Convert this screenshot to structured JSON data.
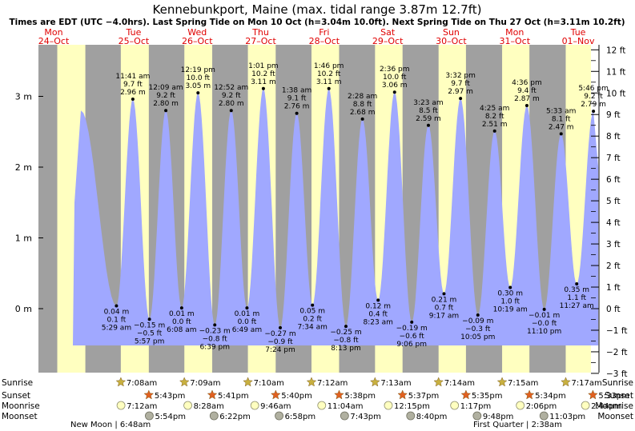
{
  "title": "Kennebunkport, Maine (max. tidal range 3.87m 12.7ft)",
  "subtitle": "Times are EDT (UTC −4.0hrs). Last Spring Tide on Mon 10 Oct (h=3.04m 10.0ft). Next Spring Tide on Thu 27 Oct (h=3.11m 10.2ft)",
  "colors": {
    "night": "#a0a0a0",
    "day": "#ffffc0",
    "water": "#a0a8ff",
    "date_header": "#e00000",
    "sun_star": "#c8b040",
    "sunset_star": "#e06020",
    "moonrise": "#ffffc0",
    "moonset": "#b0b0a0"
  },
  "chart_data": {
    "type": "area",
    "xlabel": "",
    "ylabel": "",
    "ylim_m": [
      -0.7,
      3.7
    ],
    "ylim_ft": [
      -3,
      12
    ],
    "left_ticks": [
      "0 m",
      "1 m",
      "2 m",
      "3 m"
    ],
    "right_ticks": [
      "−3 ft",
      "−2 ft",
      "−1 ft",
      "0 ft",
      "1 ft",
      "2 ft",
      "3 ft",
      "4 ft",
      "5 ft",
      "6 ft",
      "7 ft",
      "8 ft",
      "9 ft",
      "10 ft",
      "11 ft",
      "12 ft"
    ],
    "days": [
      {
        "dow": "Mon",
        "date": "24–Oct"
      },
      {
        "dow": "Tue",
        "date": "25–Oct"
      },
      {
        "dow": "Wed",
        "date": "26–Oct"
      },
      {
        "dow": "Thu",
        "date": "27–Oct"
      },
      {
        "dow": "Fri",
        "date": "28–Oct"
      },
      {
        "dow": "Sat",
        "date": "29–Oct"
      },
      {
        "dow": "Sun",
        "date": "30–Oct"
      },
      {
        "dow": "Mon",
        "date": "31–Oct"
      },
      {
        "dow": "Tue",
        "date": "01–Nov"
      }
    ],
    "tides": [
      {
        "type": "high",
        "m": 2.8,
        "ft": "",
        "time": ""
      },
      {
        "type": "low",
        "m": 0.04,
        "ft": "0.1 ft",
        "time": "5:29 am",
        "mlabel": "0.04 m"
      },
      {
        "type": "high",
        "m": 2.96,
        "ft": "9.7 ft",
        "time": "11:41 am",
        "mlabel": "2.96 m"
      },
      {
        "type": "low",
        "m": -0.15,
        "ft": "−0.5 ft",
        "time": "5:57 pm",
        "mlabel": "−0.15 m"
      },
      {
        "type": "high",
        "m": 2.8,
        "ft": "9.2 ft",
        "time": "12:09 am",
        "mlabel": "2.80 m"
      },
      {
        "type": "low",
        "m": 0.01,
        "ft": "0.0 ft",
        "time": "6:08 am",
        "mlabel": "0.01 m"
      },
      {
        "type": "high",
        "m": 3.05,
        "ft": "10.0 ft",
        "time": "12:19 pm",
        "mlabel": "3.05 m"
      },
      {
        "type": "low",
        "m": -0.23,
        "ft": "−0.8 ft",
        "time": "6:39 pm",
        "mlabel": "−0.23 m"
      },
      {
        "type": "high",
        "m": 2.8,
        "ft": "9.2 ft",
        "time": "12:52 am",
        "mlabel": "2.80 m"
      },
      {
        "type": "low",
        "m": 0.01,
        "ft": "0.0 ft",
        "time": "6:49 am",
        "mlabel": "0.01 m"
      },
      {
        "type": "high",
        "m": 3.11,
        "ft": "10.2 ft",
        "time": "1:01 pm",
        "mlabel": "3.11 m"
      },
      {
        "type": "low",
        "m": -0.27,
        "ft": "−0.9 ft",
        "time": "7:24 pm",
        "mlabel": "−0.27 m"
      },
      {
        "type": "high",
        "m": 2.76,
        "ft": "9.1 ft",
        "time": "1:38 am",
        "mlabel": "2.76 m"
      },
      {
        "type": "low",
        "m": 0.05,
        "ft": "0.2 ft",
        "time": "7:34 am",
        "mlabel": "0.05 m"
      },
      {
        "type": "high",
        "m": 3.11,
        "ft": "10.2 ft",
        "time": "1:46 pm",
        "mlabel": "3.11 m"
      },
      {
        "type": "low",
        "m": -0.25,
        "ft": "−0.8 ft",
        "time": "8:13 pm",
        "mlabel": "−0.25 m"
      },
      {
        "type": "high",
        "m": 2.68,
        "ft": "8.8 ft",
        "time": "2:28 am",
        "mlabel": "2.68 m"
      },
      {
        "type": "low",
        "m": 0.12,
        "ft": "0.4 ft",
        "time": "8:23 am",
        "mlabel": "0.12 m"
      },
      {
        "type": "high",
        "m": 3.06,
        "ft": "10.0 ft",
        "time": "2:36 pm",
        "mlabel": "3.06 m"
      },
      {
        "type": "low",
        "m": -0.19,
        "ft": "−0.6 ft",
        "time": "9:06 pm",
        "mlabel": "−0.19 m"
      },
      {
        "type": "high",
        "m": 2.59,
        "ft": "8.5 ft",
        "time": "3:23 am",
        "mlabel": "2.59 m"
      },
      {
        "type": "low",
        "m": 0.21,
        "ft": "0.7 ft",
        "time": "9:17 am",
        "mlabel": "0.21 m"
      },
      {
        "type": "high",
        "m": 2.97,
        "ft": "9.7 ft",
        "time": "3:32 pm",
        "mlabel": "2.97 m"
      },
      {
        "type": "low",
        "m": -0.09,
        "ft": "−0.3 ft",
        "time": "10:05 pm",
        "mlabel": "−0.09 m"
      },
      {
        "type": "high",
        "m": 2.51,
        "ft": "8.2 ft",
        "time": "4:25 am",
        "mlabel": "2.51 m"
      },
      {
        "type": "low",
        "m": 0.3,
        "ft": "1.0 ft",
        "time": "10:19 am",
        "mlabel": "0.30 m"
      },
      {
        "type": "high",
        "m": 2.87,
        "ft": "9.4 ft",
        "time": "4:36 pm",
        "mlabel": "2.87 m"
      },
      {
        "type": "low",
        "m": -0.01,
        "ft": "−0.0 ft",
        "time": "11:10 pm",
        "mlabel": "−0.01 m"
      },
      {
        "type": "high",
        "m": 2.47,
        "ft": "8.1 ft",
        "time": "5:33 am",
        "mlabel": "2.47 m"
      },
      {
        "type": "low",
        "m": 0.35,
        "ft": "1.1 ft",
        "time": "11:27 am",
        "mlabel": "0.35 m"
      },
      {
        "type": "high",
        "m": 2.79,
        "ft": "9.2 ft",
        "time": "5:46 pm",
        "mlabel": "2.79 m"
      }
    ]
  },
  "rows": {
    "labels": {
      "sunrise": "Sunrise",
      "sunset": "Sunset",
      "moonrise": "Moonrise",
      "moonset": "Moonset"
    },
    "sunrise": [
      "7:08am",
      "7:09am",
      "7:10am",
      "7:12am",
      "7:13am",
      "7:14am",
      "7:15am",
      "7:17am"
    ],
    "sunset": [
      "5:43pm",
      "5:41pm",
      "5:40pm",
      "5:38pm",
      "5:37pm",
      "5:35pm",
      "5:34pm",
      "5:33pm"
    ],
    "moonrise": [
      "7:12am",
      "8:28am",
      "9:46am",
      "11:04am",
      "12:15pm",
      "1:17pm",
      "2:06pm",
      "2:44pm"
    ],
    "moonset": [
      "5:54pm",
      "6:22pm",
      "6:58pm",
      "7:43pm",
      "8:40pm",
      "9:48pm",
      "11:03pm"
    ],
    "new_moon": "New Moon | 6:48am",
    "first_quarter": "First Quarter | 2:38am"
  }
}
